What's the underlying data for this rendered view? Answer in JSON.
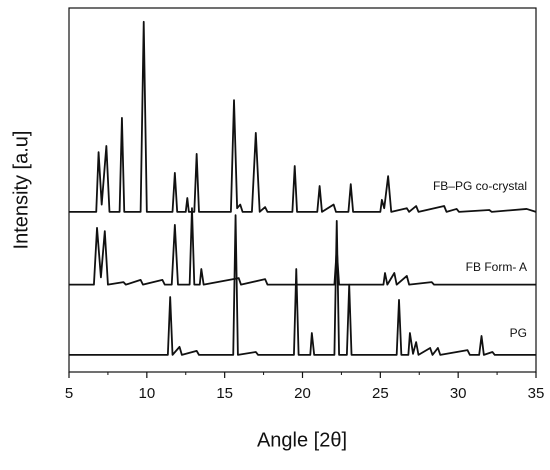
{
  "chart_data": {
    "type": "line",
    "xlabel": "Angle [2θ]",
    "ylabel": "Intensity [a.u]",
    "xlim": [
      5,
      35
    ],
    "xticks": [
      5,
      10,
      15,
      20,
      25,
      30,
      35
    ],
    "xminorticks": [
      7.5,
      12.5,
      17.5,
      22.5,
      27.5,
      32.5
    ],
    "ylim": [
      0,
      100
    ],
    "series": [
      {
        "name": "FB–PG co-crystal",
        "color": "#111111",
        "x": [
          5,
          6.75,
          6.9,
          7.1,
          7.4,
          7.6,
          8.25,
          8.4,
          8.55,
          9.6,
          9.8,
          10.0,
          11.65,
          11.8,
          11.95,
          12.5,
          12.6,
          12.7,
          13.05,
          13.2,
          13.35,
          15.4,
          15.6,
          15.8,
          16.0,
          16.15,
          16.75,
          17.0,
          17.25,
          17.6,
          17.75,
          19.35,
          19.5,
          19.65,
          20.95,
          21.1,
          21.25,
          22.0,
          22.15,
          22.95,
          23.1,
          23.25,
          25.0,
          25.1,
          25.25,
          25.5,
          25.7,
          26.7,
          26.85,
          27.3,
          27.45,
          29.1,
          29.25,
          29.9,
          30.05,
          32,
          32.15,
          34.4,
          35
        ],
        "values": [
          44,
          44,
          60.4,
          46,
          62.1,
          44,
          44,
          69.8,
          44,
          44,
          96.2,
          44,
          44,
          54.7,
          44,
          44,
          47.8,
          44,
          44,
          59.9,
          44,
          44,
          74.7,
          45,
          46,
          44,
          44,
          65.7,
          44,
          45.3,
          44,
          44,
          56.6,
          44,
          44,
          51.1,
          44,
          46,
          44,
          44,
          51.6,
          44,
          44,
          47.3,
          45,
          53.8,
          44,
          45,
          44,
          45.6,
          44,
          45.6,
          44,
          44.8,
          44,
          44.5,
          44,
          44.8,
          44
        ]
      },
      {
        "name": "FB Form- A",
        "color": "#111111",
        "x": [
          5,
          6.6,
          6.8,
          7.05,
          7.3,
          7.5,
          8.5,
          8.65,
          9.6,
          9.75,
          11.0,
          11.15,
          11.6,
          11.8,
          12.0,
          12.75,
          12.9,
          13.05,
          13.4,
          13.5,
          13.65,
          15.9,
          16.05,
          17.6,
          17.75,
          22.05,
          22.2,
          22.35,
          25.2,
          25.3,
          25.45,
          25.9,
          26.05,
          26.7,
          26.85,
          28.3,
          28.45,
          35
        ],
        "values": [
          24,
          24,
          39.6,
          26,
          38.7,
          24,
          24.7,
          24,
          25.3,
          24,
          25.3,
          24,
          24,
          40.4,
          24,
          24,
          45,
          24,
          24,
          28.3,
          24,
          25.8,
          24,
          25.5,
          24,
          24,
          33.8,
          24,
          24,
          27.2,
          24,
          27.2,
          24,
          26.4,
          24,
          24.7,
          24,
          24
        ]
      },
      {
        "name": "PG",
        "color": "#111111",
        "x": [
          5,
          11.35,
          11.5,
          11.65,
          12.1,
          12.25,
          13.2,
          13.35,
          15.55,
          15.7,
          15.85,
          17.0,
          17.15,
          19.45,
          19.6,
          19.75,
          20.5,
          20.6,
          20.75,
          22.05,
          22.2,
          22.35,
          22.85,
          23.0,
          23.15,
          26.05,
          26.2,
          26.35,
          26.8,
          26.9,
          27.1,
          27.3,
          27.45,
          28.2,
          28.35,
          28.7,
          28.85,
          30.6,
          30.75,
          31.35,
          31.5,
          31.65,
          32.2,
          32.35,
          35
        ],
        "values": [
          4.7,
          4.7,
          20.6,
          4.7,
          6.9,
          4.7,
          5.8,
          4.7,
          4.7,
          43.1,
          4.7,
          5.5,
          4.7,
          4.7,
          28.3,
          4.7,
          4.7,
          10.7,
          4.7,
          4.7,
          41.5,
          4.7,
          4.7,
          24,
          4.7,
          4.7,
          19.8,
          4.7,
          4.7,
          10.7,
          5,
          8.2,
          4.7,
          6.6,
          4.7,
          6.6,
          4.7,
          6,
          4.7,
          4.7,
          9.9,
          4.7,
          5.5,
          4.7,
          4.7
        ]
      }
    ]
  }
}
